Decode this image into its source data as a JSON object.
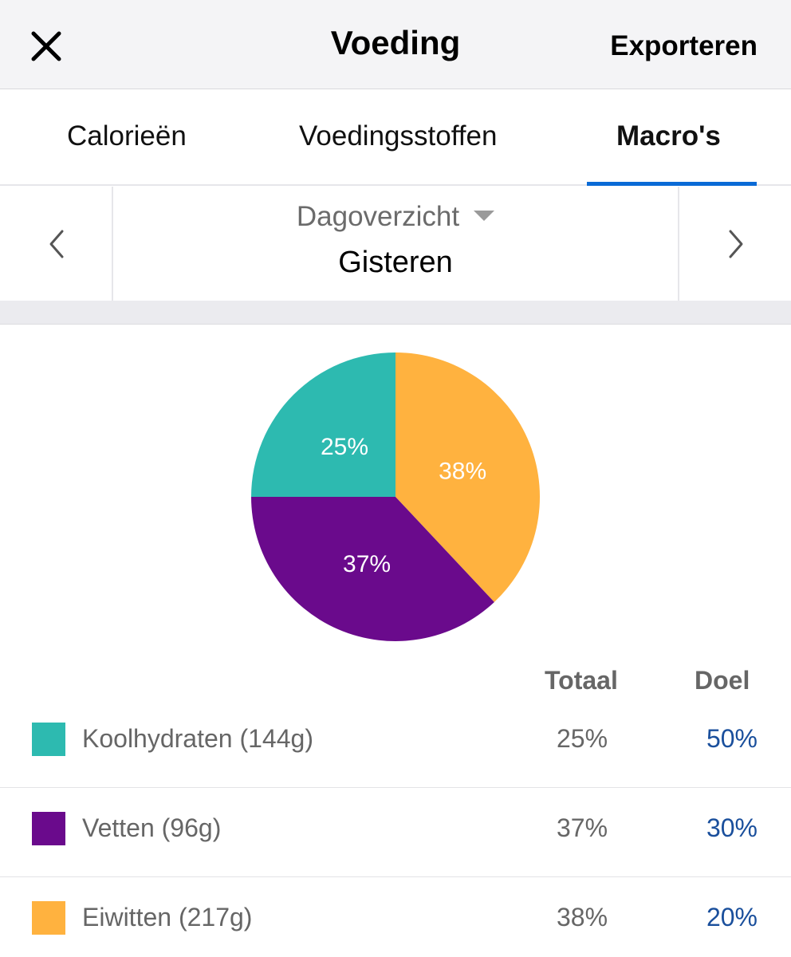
{
  "header": {
    "title": "Voeding",
    "export_label": "Exporteren"
  },
  "tabs": [
    {
      "label": "Calorieën",
      "active": false
    },
    {
      "label": "Voedingsstoffen",
      "active": false
    },
    {
      "label": "Macro's",
      "active": true
    }
  ],
  "date_selector": {
    "mode": "Dagoverzicht",
    "value": "Gisteren"
  },
  "table": {
    "col_total": "Totaal",
    "col_goal": "Doel",
    "rows": [
      {
        "name": "Koolhydraten (144g)",
        "total": "25%",
        "goal": "50%",
        "color": "#2dbab0"
      },
      {
        "name": "Vetten (96g)",
        "total": "37%",
        "goal": "30%",
        "color": "#6a0a8c"
      },
      {
        "name": "Eiwitten (217g)",
        "total": "38%",
        "goal": "20%",
        "color": "#ffb23f"
      }
    ]
  },
  "chart_data": {
    "type": "pie",
    "slices": [
      {
        "label": "38%",
        "value": 38,
        "color": "#ffb23f"
      },
      {
        "label": "37%",
        "value": 37,
        "color": "#6a0a8c"
      },
      {
        "label": "25%",
        "value": 25,
        "color": "#2dbab0"
      }
    ]
  }
}
